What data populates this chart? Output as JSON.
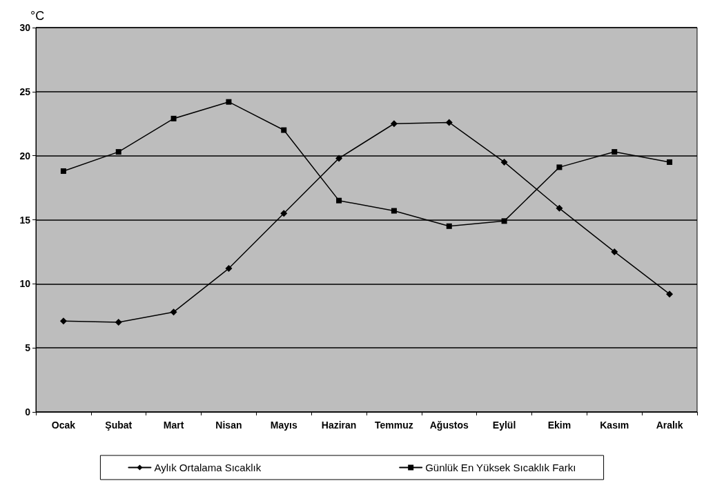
{
  "chart_data": {
    "type": "line",
    "ylabel": "°C",
    "categories": [
      "Ocak",
      "Şubat",
      "Mart",
      "Nisan",
      "Mayıs",
      "Haziran",
      "Temmuz",
      "Ağustos",
      "Eylül",
      "Ekim",
      "Kasım",
      "Aralık"
    ],
    "series": [
      {
        "name": "Aylık Ortalama Sıcaklık",
        "color": "#000000",
        "marker": "diamond",
        "values": [
          7.1,
          7.0,
          7.8,
          11.2,
          15.5,
          19.8,
          22.5,
          22.6,
          19.5,
          15.9,
          12.5,
          9.2
        ]
      },
      {
        "name": "Günlük En Yüksek Sıcaklık Farkı",
        "color": "#000000",
        "marker": "square",
        "values": [
          18.8,
          20.3,
          22.9,
          24.2,
          22.0,
          16.5,
          15.7,
          14.5,
          14.9,
          19.1,
          20.3,
          19.5
        ]
      }
    ],
    "ylim": [
      0,
      30
    ],
    "yticks": [
      0,
      5,
      10,
      15,
      20,
      25,
      30
    ],
    "grid": "y",
    "legend": "bottom",
    "line_style": "solid"
  }
}
